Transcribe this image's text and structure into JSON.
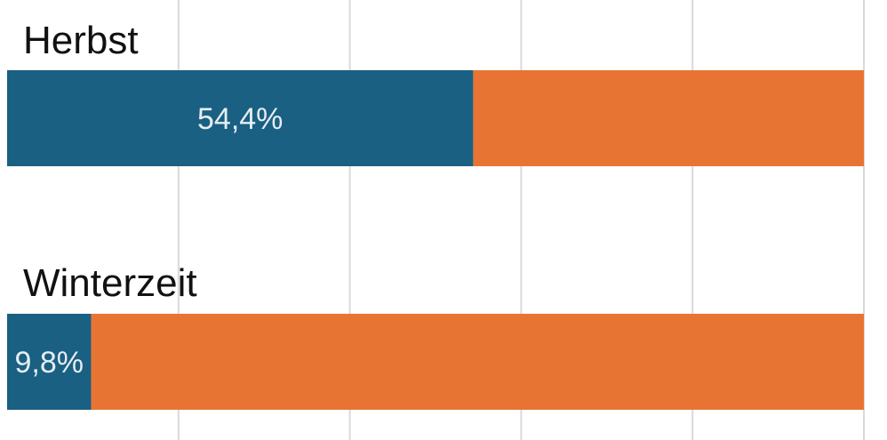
{
  "chart_data": {
    "type": "bar",
    "orientation": "horizontal",
    "stacked": true,
    "normalized_percent": true,
    "categories": [
      "Herbst",
      "Winterzeit"
    ],
    "series": [
      {
        "values": [
          54.4,
          9.8
        ],
        "labels": [
          "54,4%",
          "9,8%"
        ],
        "color": "#196082"
      },
      {
        "values": [
          45.6,
          90.2
        ],
        "labels": [
          "",
          ""
        ],
        "color": "#e87434"
      }
    ],
    "xlim": [
      0,
      100
    ],
    "grid": true,
    "legend": "none"
  }
}
